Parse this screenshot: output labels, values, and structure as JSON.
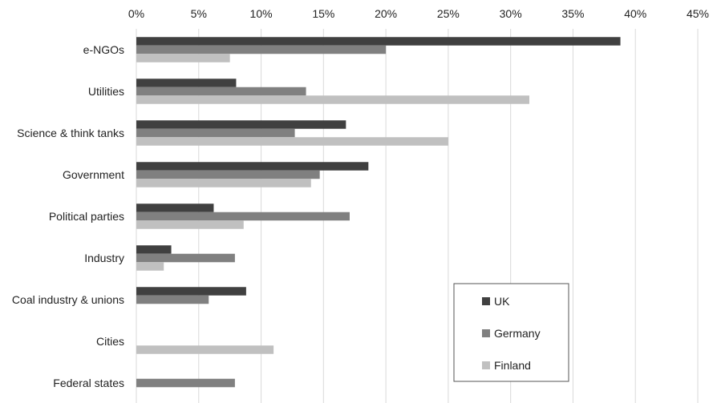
{
  "chart_data": {
    "type": "bar",
    "orientation": "horizontal",
    "categories": [
      "e-NGOs",
      "Utilities",
      "Science & think tanks",
      "Government",
      "Political parties",
      "Industry",
      "Coal industry & unions",
      "Cities",
      "Federal states"
    ],
    "series": [
      {
        "name": "UK",
        "color": "#404040",
        "values": [
          38.8,
          8.0,
          16.8,
          18.6,
          6.2,
          2.8,
          8.8,
          0,
          0
        ]
      },
      {
        "name": "Germany",
        "color": "#808080",
        "values": [
          20.0,
          13.6,
          12.7,
          14.7,
          17.1,
          7.9,
          5.8,
          0,
          7.9
        ]
      },
      {
        "name": "Finland",
        "color": "#c0c0c0",
        "values": [
          7.5,
          31.5,
          25.0,
          14.0,
          8.6,
          2.2,
          0,
          11.0,
          0
        ]
      }
    ],
    "xlim": [
      0,
      45
    ],
    "ticks": [
      "0%",
      "5%",
      "10%",
      "15%",
      "20%",
      "25%",
      "30%",
      "35%",
      "40%",
      "45%"
    ],
    "tick_values": [
      0,
      5,
      10,
      15,
      20,
      25,
      30,
      35,
      40,
      45
    ],
    "grid": true,
    "legend_position": "bottom-right"
  }
}
